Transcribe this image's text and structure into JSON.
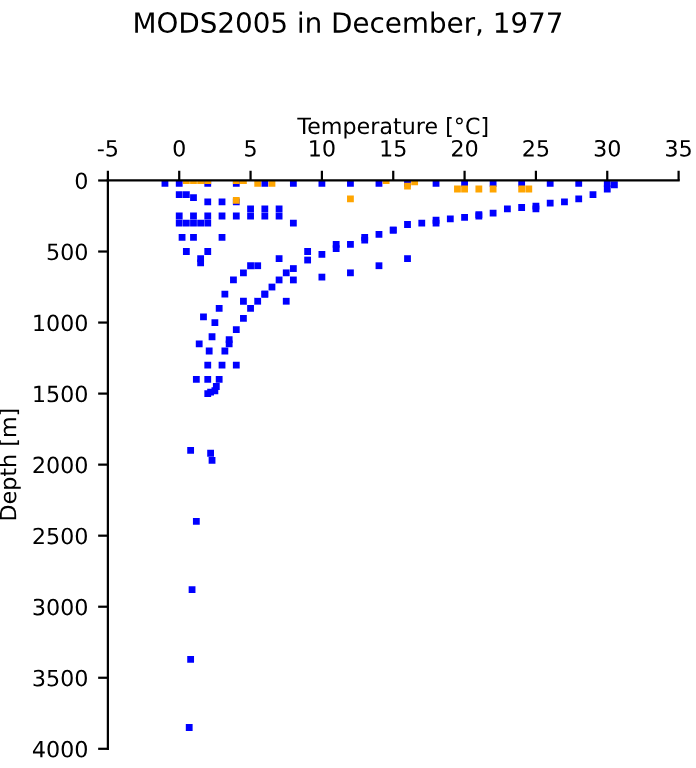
{
  "chart_data": {
    "type": "scatter",
    "title": "MODS2005 in December, 1977",
    "xlabel": "Temperature [°C]",
    "ylabel": "Depth [m]",
    "xlim": [
      -5,
      35
    ],
    "xticks": [
      -5,
      0,
      5,
      10,
      15,
      20,
      25,
      30,
      35
    ],
    "ylim": [
      4000,
      0
    ],
    "yticks": [
      0,
      500,
      1000,
      1500,
      2000,
      2500,
      3000,
      3500,
      4000
    ],
    "grid": false,
    "marker": "square",
    "series": [
      {
        "color": "#0000ff",
        "x": [
          -1,
          0,
          2,
          4,
          6,
          8,
          10,
          12,
          14,
          16,
          18,
          20,
          22,
          24,
          26,
          28,
          30,
          30.5,
          30,
          29,
          28,
          27,
          26,
          25,
          24,
          23,
          22,
          21,
          20,
          19,
          18,
          17,
          16,
          15,
          14,
          13,
          12,
          11,
          10,
          9,
          8,
          7.5,
          7,
          6.5,
          6,
          5.5,
          5,
          4.5,
          4,
          3.5,
          3.2,
          3,
          2.8,
          2.6,
          2.5,
          2.2,
          2,
          2,
          2,
          2.1,
          2.3,
          2.5,
          2.8,
          3.2,
          3.8,
          4.5,
          5.5,
          7,
          9,
          11,
          13,
          15,
          18,
          21,
          25,
          0,
          0.5,
          1,
          2,
          3,
          4,
          5,
          6,
          7,
          0,
          1,
          2,
          3,
          4,
          5,
          6,
          7,
          8,
          0,
          0.5,
          1,
          1.5,
          2,
          3,
          0.2,
          1,
          2,
          0.5,
          1.5,
          1.5,
          1.7,
          1.4,
          1.2,
          4,
          3.5,
          4.5,
          6,
          7.5,
          5,
          8,
          10,
          12,
          14,
          16,
          0.8,
          2.2,
          2.3,
          1.2,
          0.9,
          0.8,
          0.7
        ],
        "values": [
          20,
          20,
          20,
          20,
          20,
          20,
          20,
          20,
          20,
          20,
          20,
          20,
          20,
          20,
          20,
          20,
          20,
          30,
          60,
          100,
          130,
          150,
          160,
          180,
          190,
          200,
          230,
          240,
          260,
          270,
          280,
          300,
          310,
          350,
          380,
          420,
          450,
          480,
          520,
          560,
          620,
          650,
          700,
          750,
          800,
          850,
          900,
          970,
          1050,
          1120,
          1200,
          1300,
          1400,
          1450,
          1480,
          1490,
          1500,
          1400,
          1300,
          1200,
          1100,
          1000,
          900,
          800,
          700,
          650,
          600,
          550,
          500,
          450,
          400,
          350,
          300,
          250,
          200,
          100,
          100,
          120,
          150,
          150,
          150,
          200,
          200,
          200,
          250,
          250,
          250,
          250,
          250,
          250,
          250,
          250,
          300,
          300,
          300,
          300,
          300,
          300,
          400,
          400,
          400,
          500,
          500,
          580,
          550,
          960,
          1150,
          1400,
          1300,
          1150,
          850,
          800,
          850,
          600,
          700,
          680,
          650,
          600,
          550,
          1900,
          1920,
          1970,
          2400,
          2880,
          3370,
          3850
        ]
      },
      {
        "color": "#ffa500",
        "x": [
          0.5,
          1,
          1.5,
          2,
          4,
          4.5,
          5.5,
          6.5,
          14.5,
          16,
          16.5,
          19.5,
          20,
          21,
          22,
          24,
          24.5,
          4,
          12
        ],
        "values": [
          0,
          0,
          0,
          0,
          0,
          0,
          20,
          20,
          0,
          40,
          10,
          60,
          60,
          60,
          60,
          60,
          60,
          140,
          130
        ]
      }
    ]
  }
}
